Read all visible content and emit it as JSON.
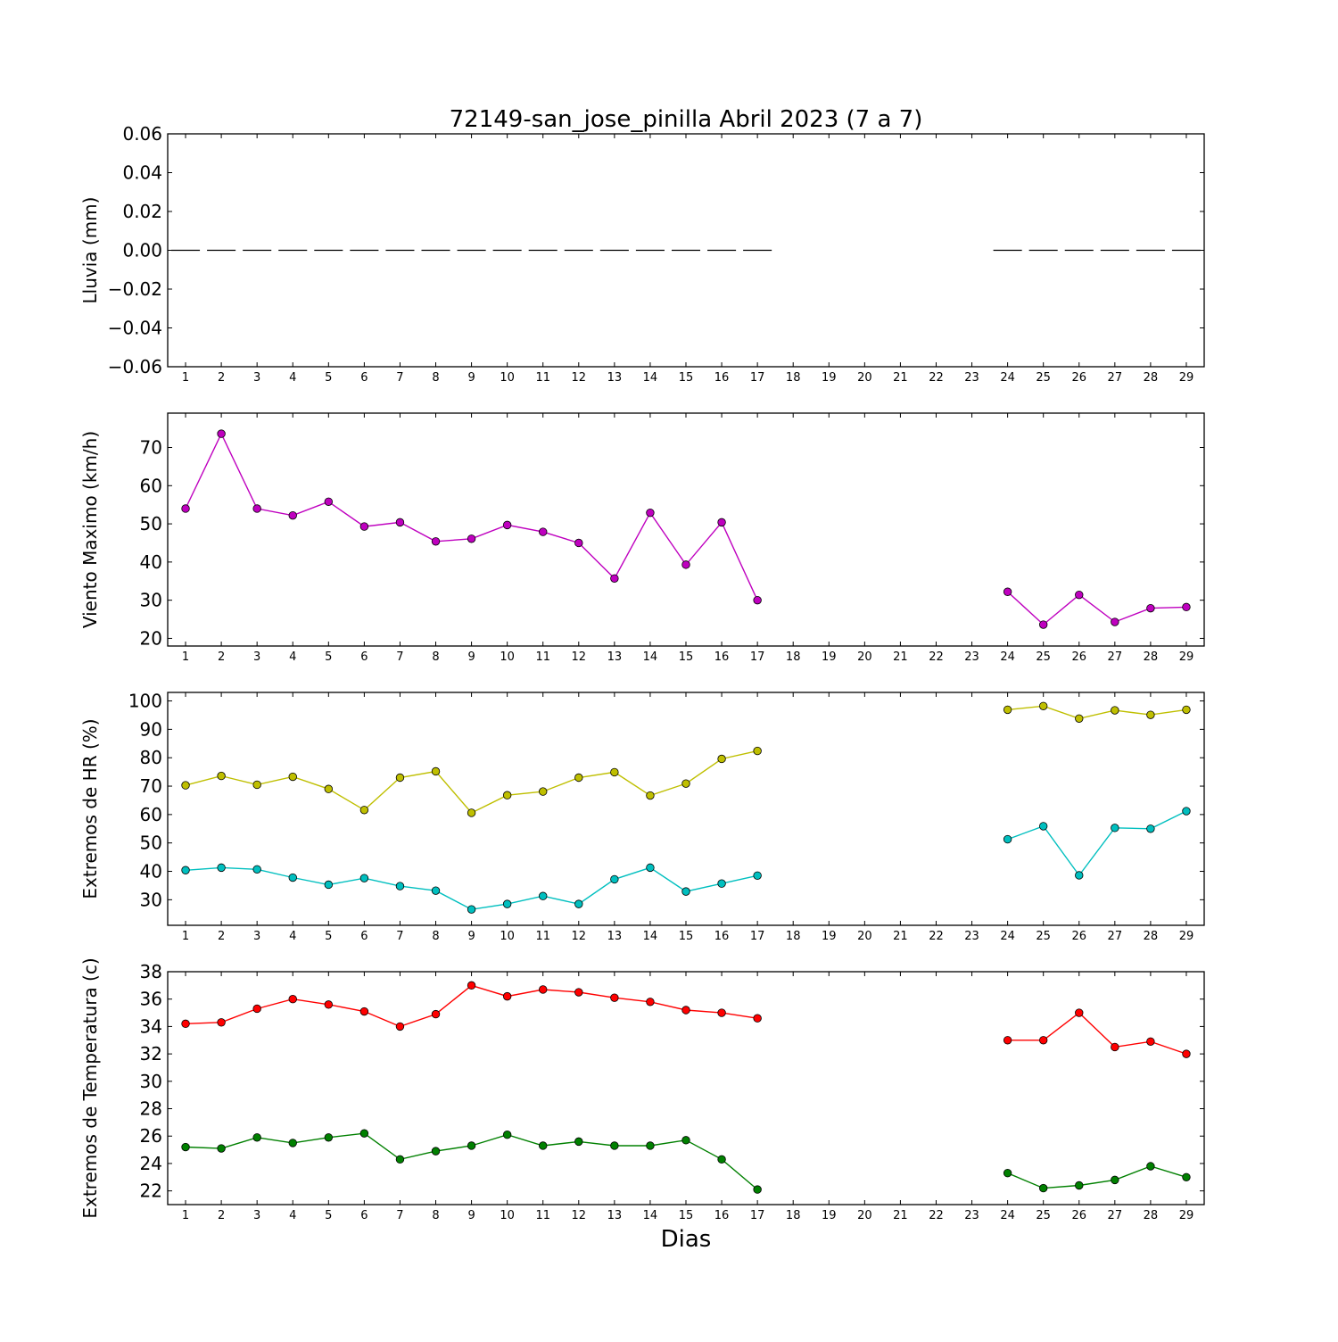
{
  "title": "72149-san_jose_pinilla Abril 2023  (7 a 7)",
  "xlabel": "Dias",
  "colors": {
    "lluvia": "#000000",
    "viento": "#bf00bf",
    "hr_max": "#bfbf00",
    "hr_min": "#00bfbf",
    "temp_max": "#ff0000",
    "temp_min": "#008000"
  },
  "chart_data": [
    {
      "type": "bar",
      "ylabel": "Lluvia (mm)",
      "ylim": [
        -0.06,
        0.06
      ],
      "yticks": [
        -0.06,
        -0.04,
        -0.02,
        0.0,
        0.02,
        0.04,
        0.06
      ],
      "ytick_labels": [
        "−0.06",
        "−0.04",
        "−0.02",
        "0.00",
        "0.02",
        "0.04",
        "0.06"
      ],
      "xlim": [
        0.5,
        29.5
      ],
      "x": [
        1,
        2,
        3,
        4,
        5,
        6,
        7,
        8,
        9,
        10,
        11,
        12,
        13,
        14,
        15,
        16,
        17,
        18,
        19,
        20,
        21,
        22,
        23,
        24,
        25,
        26,
        27,
        28,
        29
      ],
      "series": [
        {
          "values": [
            0,
            0,
            0,
            0,
            0,
            0,
            0,
            0,
            0,
            0,
            0,
            0,
            0,
            0,
            0,
            0,
            0,
            null,
            null,
            null,
            null,
            null,
            null,
            0,
            0,
            0,
            0,
            0,
            0
          ]
        }
      ]
    },
    {
      "type": "line",
      "ylabel": "Viento Maximo (km/h)",
      "ylim": [
        18,
        79
      ],
      "yticks": [
        20,
        30,
        40,
        50,
        60,
        70
      ],
      "ytick_labels": [
        "20",
        "30",
        "40",
        "50",
        "60",
        "70"
      ],
      "xlim": [
        0.5,
        29.5
      ],
      "x": [
        1,
        2,
        3,
        4,
        5,
        6,
        7,
        8,
        9,
        10,
        11,
        12,
        13,
        14,
        15,
        16,
        17,
        18,
        19,
        20,
        21,
        22,
        23,
        24,
        25,
        26,
        27,
        28,
        29
      ],
      "series": [
        {
          "values": [
            54.0,
            73.6,
            54.0,
            52.2,
            55.8,
            49.3,
            50.4,
            45.4,
            46.1,
            49.7,
            47.9,
            45.0,
            35.7,
            52.9,
            39.3,
            50.4,
            30.0,
            null,
            null,
            null,
            null,
            null,
            null,
            32.2,
            23.6,
            31.4,
            24.3,
            27.9,
            28.2
          ]
        }
      ]
    },
    {
      "type": "line",
      "ylabel": "Extremos de HR (%)",
      "ylim": [
        21,
        103
      ],
      "yticks": [
        30,
        40,
        50,
        60,
        70,
        80,
        90,
        100
      ],
      "ytick_labels": [
        "30",
        "40",
        "50",
        "60",
        "70",
        "80",
        "90",
        "100"
      ],
      "xlim": [
        0.5,
        29.5
      ],
      "x": [
        1,
        2,
        3,
        4,
        5,
        6,
        7,
        8,
        9,
        10,
        11,
        12,
        13,
        14,
        15,
        16,
        17,
        18,
        19,
        20,
        21,
        22,
        23,
        24,
        25,
        26,
        27,
        28,
        29
      ],
      "series": [
        {
          "values": [
            70.3,
            73.6,
            70.5,
            73.3,
            69.0,
            61.6,
            73.0,
            75.2,
            60.6,
            66.8,
            68.1,
            73.0,
            74.9,
            66.7,
            70.9,
            79.6,
            82.4,
            null,
            null,
            null,
            null,
            null,
            null,
            96.9,
            98.2,
            93.8,
            96.7,
            95.1,
            96.9
          ]
        },
        {
          "values": [
            40.4,
            41.3,
            40.7,
            37.8,
            35.3,
            37.6,
            34.8,
            33.2,
            26.6,
            28.5,
            31.3,
            28.5,
            37.2,
            41.3,
            32.9,
            35.7,
            38.5,
            null,
            null,
            null,
            null,
            null,
            null,
            51.3,
            55.9,
            38.6,
            55.3,
            55.0,
            61.2
          ]
        }
      ]
    },
    {
      "type": "line",
      "ylabel": "Extremos de Temperatura (c)",
      "ylim": [
        21,
        38
      ],
      "yticks": [
        22,
        24,
        26,
        28,
        30,
        32,
        34,
        36,
        38
      ],
      "ytick_labels": [
        "22",
        "24",
        "26",
        "28",
        "30",
        "32",
        "34",
        "36",
        "38"
      ],
      "xlim": [
        0.5,
        29.5
      ],
      "x": [
        1,
        2,
        3,
        4,
        5,
        6,
        7,
        8,
        9,
        10,
        11,
        12,
        13,
        14,
        15,
        16,
        17,
        18,
        19,
        20,
        21,
        22,
        23,
        24,
        25,
        26,
        27,
        28,
        29
      ],
      "series": [
        {
          "values": [
            34.2,
            34.3,
            35.3,
            36.0,
            35.6,
            35.1,
            34.0,
            34.9,
            37.0,
            36.2,
            36.7,
            36.5,
            36.1,
            35.8,
            35.2,
            35.0,
            34.6,
            null,
            null,
            null,
            null,
            null,
            null,
            33.0,
            33.0,
            35.0,
            32.5,
            32.9,
            32.0
          ]
        },
        {
          "values": [
            25.2,
            25.1,
            25.9,
            25.5,
            25.9,
            26.2,
            24.3,
            24.9,
            25.3,
            26.1,
            25.3,
            25.6,
            25.3,
            25.3,
            25.7,
            24.3,
            22.1,
            null,
            null,
            null,
            null,
            null,
            null,
            23.3,
            22.2,
            22.4,
            22.8,
            23.8,
            23.0
          ]
        }
      ]
    }
  ]
}
